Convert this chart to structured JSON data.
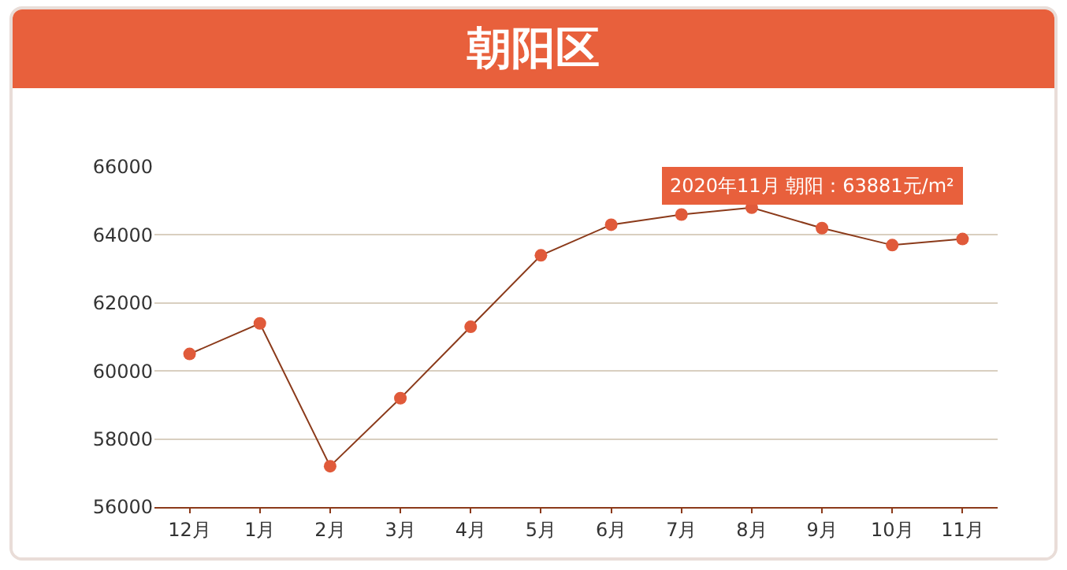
{
  "chart_data": {
    "type": "line",
    "title": "朝阳区",
    "categories": [
      "12月",
      "1月",
      "2月",
      "3月",
      "4月",
      "5月",
      "6月",
      "7月",
      "8月",
      "9月",
      "10月",
      "11月"
    ],
    "series": [
      {
        "color": "#8b3a1a",
        "values": [
          60500,
          61400,
          57200,
          59200,
          61300,
          63400,
          64300,
          64600,
          64800,
          64200,
          63700,
          63881
        ]
      }
    ],
    "ylim": [
      56000,
      66000
    ],
    "yticks": [
      56000,
      58000,
      60000,
      62000,
      64000,
      66000
    ],
    "grid": "y",
    "marker": "circle",
    "line_style": "solid",
    "annotations": [
      {
        "text": "2020年11月 朝阳：63881元/m²",
        "x": "11月",
        "y": 63881
      }
    ]
  }
}
